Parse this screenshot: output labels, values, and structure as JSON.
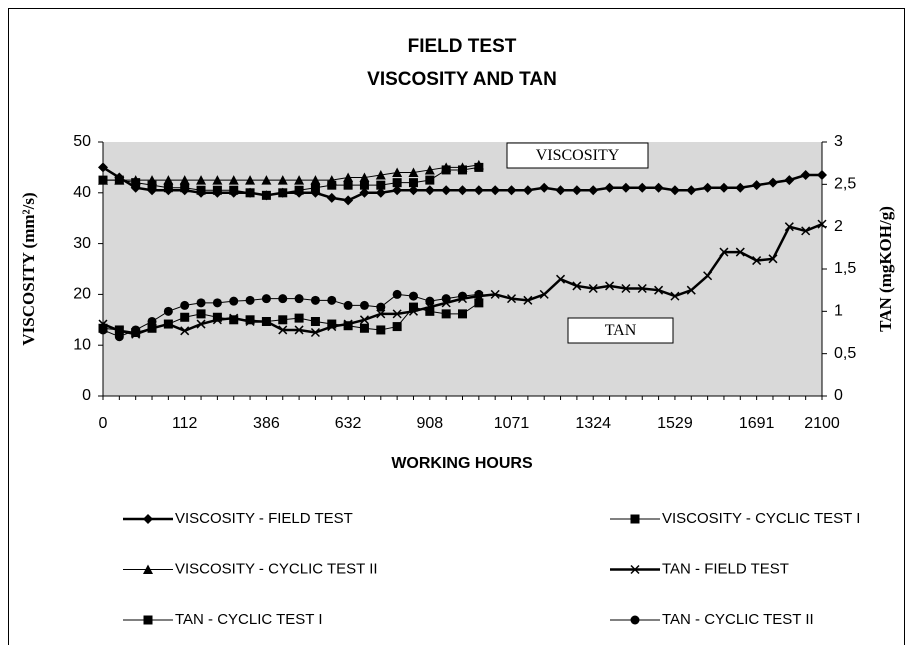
{
  "chart_data": {
    "type": "line",
    "title": "FIELD TEST",
    "subtitle": "VISCOSITY AND TAN",
    "x_label": "WORKING HOURS",
    "y_label": "VISCOSITY (mm²/s)",
    "y2_label": "TAN (mgKOH/g)",
    "annotations": [
      "VISCOSITY",
      "TAN"
    ],
    "categories": [
      "0",
      null,
      null,
      null,
      null,
      "112",
      null,
      null,
      null,
      null,
      "386",
      null,
      null,
      null,
      null,
      "632",
      null,
      null,
      null,
      null,
      "908",
      null,
      null,
      null,
      null,
      "1071",
      null,
      null,
      null,
      null,
      "1324",
      null,
      null,
      null,
      null,
      "1529",
      null,
      null,
      null,
      null,
      "1691",
      null,
      null,
      null,
      "2100"
    ],
    "ylim": [
      0,
      50
    ],
    "yticks": [
      0,
      10,
      20,
      30,
      40,
      50
    ],
    "y2lim": [
      0,
      3
    ],
    "y2ticks": [
      0,
      {
        "value": 0.5,
        "label": "0,5"
      },
      1,
      {
        "value": 1.5,
        "label": "1,5"
      },
      2,
      {
        "value": 2.5,
        "label": "2,5"
      },
      3
    ],
    "plot_background": "#d9d9d9",
    "series": [
      {
        "name": "VISCOSITY - FIELD TEST",
        "color": "#000000",
        "marker": "diamond",
        "line_width": 2.5,
        "values": [
          45,
          43,
          41,
          40.5,
          40.5,
          40.5,
          40,
          40,
          40,
          40,
          39.5,
          40,
          40,
          40,
          39,
          38.5,
          40,
          40,
          40.5,
          40.5,
          40.5,
          40.5,
          40.5,
          40.5,
          40.5,
          40.5,
          40.5,
          41,
          40.5,
          40.5,
          40.5,
          41,
          41,
          41,
          41,
          40.5,
          40.5,
          41,
          41,
          41,
          41.5,
          42,
          42.5,
          43.5,
          43.5
        ]
      },
      {
        "name": "VISCOSITY - CYCLIC TEST I",
        "color": "#000000",
        "marker": "square",
        "line_width": 1,
        "values": [
          42.5,
          42.5,
          42,
          41.5,
          41,
          41,
          40.5,
          40.5,
          40.5,
          40,
          39.5,
          40,
          40.5,
          41,
          41.5,
          41.5,
          41.5,
          41.5,
          42,
          42,
          42.5,
          44.5,
          44.5,
          45,
          null,
          null,
          null,
          null,
          null,
          null,
          null,
          null,
          null,
          null,
          null,
          null,
          null,
          null,
          null,
          null,
          null,
          null,
          null,
          null,
          null
        ]
      },
      {
        "name": "VISCOSITY - CYCLIC TEST II",
        "color": "#000000",
        "marker": "triangle",
        "line_width": 1,
        "values": [
          42.5,
          42.5,
          42.5,
          42.5,
          42.5,
          42.5,
          42.5,
          42.5,
          42.5,
          42.5,
          42.5,
          42.5,
          42.5,
          42.5,
          42.5,
          43,
          43,
          43.5,
          44,
          44,
          44.5,
          45,
          45,
          45.5,
          null,
          null,
          null,
          null,
          null,
          null,
          null,
          null,
          null,
          null,
          null,
          null,
          null,
          null,
          null,
          null,
          null,
          null,
          null,
          null,
          null
        ]
      },
      {
        "name": "TAN - FIELD TEST",
        "color": "#000000",
        "marker": "x",
        "line_width": 2.5,
        "axis": "y2",
        "values": [
          0.85,
          0.77,
          0.73,
          0.8,
          0.85,
          0.77,
          0.85,
          0.9,
          0.92,
          0.88,
          0.88,
          0.78,
          0.78,
          0.75,
          0.82,
          0.85,
          0.9,
          0.97,
          0.97,
          1.0,
          1.05,
          1.1,
          1.15,
          1.18,
          1.2,
          1.15,
          1.13,
          1.2,
          1.38,
          1.3,
          1.27,
          1.3,
          1.27,
          1.27,
          1.25,
          1.18,
          1.25,
          1.42,
          1.7,
          1.7,
          1.6,
          1.62,
          2.0,
          1.95,
          2.03
        ]
      },
      {
        "name": "TAN - CYCLIC TEST I",
        "color": "#000000",
        "marker": "square",
        "line_width": 1,
        "axis": "y2",
        "values": [
          0.8,
          0.78,
          0.75,
          0.8,
          0.85,
          0.93,
          0.97,
          0.93,
          0.9,
          0.9,
          0.88,
          0.9,
          0.92,
          0.88,
          0.85,
          0.83,
          0.8,
          0.78,
          0.82,
          1.05,
          1.0,
          0.97,
          0.97,
          1.1,
          null,
          null,
          null,
          null,
          null,
          null,
          null,
          null,
          null,
          null,
          null,
          null,
          null,
          null,
          null,
          null,
          null,
          null,
          null,
          null,
          null
        ]
      },
      {
        "name": "TAN - CYCLIC TEST II",
        "color": "#000000",
        "marker": "circle",
        "line_width": 1,
        "axis": "y2",
        "values": [
          0.78,
          0.7,
          0.78,
          0.88,
          1.0,
          1.07,
          1.1,
          1.1,
          1.12,
          1.13,
          1.15,
          1.15,
          1.15,
          1.13,
          1.13,
          1.07,
          1.07,
          1.05,
          1.2,
          1.18,
          1.12,
          1.15,
          1.18,
          1.2,
          null,
          null,
          null,
          null,
          null,
          null,
          null,
          null,
          null,
          null,
          null,
          null,
          null,
          null,
          null,
          null,
          null,
          null,
          null,
          null,
          null
        ]
      }
    ]
  }
}
